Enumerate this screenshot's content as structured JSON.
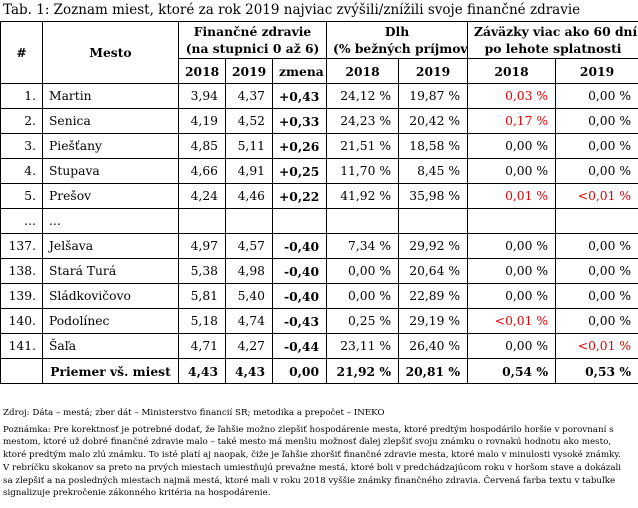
{
  "caption": "Tab. 1: Zoznam miest, ktoré za rok 2019 najviac zvýšili/znížili svoje finančné zdravie",
  "header": {
    "num": "#",
    "city": "Mesto",
    "health_l1": "Finančné zdravie",
    "health_l2": "(na stupnici 0 až 6)",
    "debt_l1": "Dlh",
    "debt_l2": "(% bežných príjmov)",
    "liab_l1": "Záväzky viac ako 60 dní",
    "liab_l2": "po lehote splatnosti",
    "y2018": "2018",
    "y2019": "2019",
    "change": "zmena"
  },
  "rows": [
    {
      "n": "1.",
      "city": "Martin",
      "h18": "3,94",
      "h19": "4,37",
      "ch": "+0,43",
      "d18": "24,12 %",
      "d19": "19,87 %",
      "l18": "0,03 %",
      "l19": "0,00 %",
      "l18_red": true,
      "l19_red": false
    },
    {
      "n": "2.",
      "city": "Senica",
      "h18": "4,19",
      "h19": "4,52",
      "ch": "+0,33",
      "d18": "24,23 %",
      "d19": "20,42 %",
      "l18": "0,17 %",
      "l19": "0,00 %",
      "l18_red": true,
      "l19_red": false
    },
    {
      "n": "3.",
      "city": "Piešťany",
      "h18": "4,85",
      "h19": "5,11",
      "ch": "+0,26",
      "d18": "21,51 %",
      "d19": "18,58 %",
      "l18": "0,00 %",
      "l19": "0,00 %",
      "l18_red": false,
      "l19_red": false
    },
    {
      "n": "4.",
      "city": "Stupava",
      "h18": "4,66",
      "h19": "4,91",
      "ch": "+0,25",
      "d18": "11,70 %",
      "d19": "8,45 %",
      "l18": "0,00 %",
      "l19": "0,00 %",
      "l18_red": false,
      "l19_red": false
    },
    {
      "n": "5.",
      "city": "Prešov",
      "h18": "4,24",
      "h19": "4,46",
      "ch": "+0,22",
      "d18": "41,92 %",
      "d19": "35,98 %",
      "l18": "0,01 %",
      "l19": "<0,01 %",
      "l18_red": true,
      "l19_red": true
    },
    {
      "n": "...",
      "city": "...",
      "h18": "",
      "h19": "",
      "ch": "",
      "d18": "",
      "d19": "",
      "l18": "",
      "l19": "",
      "l18_red": false,
      "l19_red": false
    },
    {
      "n": "137.",
      "city": "Jelšava",
      "h18": "4,97",
      "h19": "4,57",
      "ch": "-0,40",
      "d18": "7,34 %",
      "d19": "29,92 %",
      "l18": "0,00 %",
      "l19": "0,00 %",
      "l18_red": false,
      "l19_red": false
    },
    {
      "n": "138.",
      "city": "Stará Turá",
      "h18": "5,38",
      "h19": "4,98",
      "ch": "-0,40",
      "d18": "0,00 %",
      "d19": "20,64 %",
      "l18": "0,00 %",
      "l19": "0,00 %",
      "l18_red": false,
      "l19_red": false
    },
    {
      "n": "139.",
      "city": "Sládkovičovo",
      "h18": "5,81",
      "h19": "5,40",
      "ch": "-0,40",
      "d18": "0,00 %",
      "d19": "22,89 %",
      "l18": "0,00 %",
      "l19": "0,00 %",
      "l18_red": false,
      "l19_red": false
    },
    {
      "n": "140.",
      "city": "Podolínec",
      "h18": "5,18",
      "h19": "4,74",
      "ch": "-0,43",
      "d18": "0,25 %",
      "d19": "29,19 %",
      "l18": "<0,01 %",
      "l19": "0,00 %",
      "l18_red": true,
      "l19_red": false
    },
    {
      "n": "141.",
      "city": "Šaľa",
      "h18": "4,71",
      "h19": "4,27",
      "ch": "-0,44",
      "d18": "23,11 %",
      "d19": "26,40 %",
      "l18": "0,00 %",
      "l19": "<0,01 %",
      "l18_red": false,
      "l19_red": true
    }
  ],
  "average": {
    "label": "Priemer vš. miest",
    "h18": "4,43",
    "h19": "4,43",
    "ch": "0,00",
    "d18": "21,92 %",
    "d19": "20,81 %",
    "l18": "0,54 %",
    "l19": "0,53 %"
  },
  "footer": {
    "source": "Zdroj: Dáta – mestá; zber dát – Ministerstvo financií SR; metodika a prepočet – INEKO",
    "note_lines": [
      "Poznámka: Pre korektnosť je potrebné dodať, že ľahšie možno zlepšiť hospodárenie mesta, ktoré predtým hospodárilo horšie v porovnaní s",
      "mestom, ktoré už dobré finančné zdravie malo – také mesto má menšiu možnosť ďalej zlepšiť svoju známku o rovnakú hodnotu ako mesto,",
      "ktoré predtým malo zlú známku. To isté platí aj naopak, čiže je ľahšie zhoršiť finančné zdravie mesta, ktoré malo v minulosti vysoké známky.",
      "V rebríčku skokanov sa preto na prvých miestach umiestňujú prevažne mestá, ktoré boli v predchádzajúcom roku v horšom stave a dokázali",
      "sa zlepšiť a na posledných miestach najmä mestá, ktoré mali v roku 2018 vyššie známky finančného zdravia. Červená farba textu v tabuľke",
      "signalizuje prekročenie zákonného kritéria na hospodárenie."
    ]
  },
  "colors": {
    "alert": "#e00000"
  }
}
